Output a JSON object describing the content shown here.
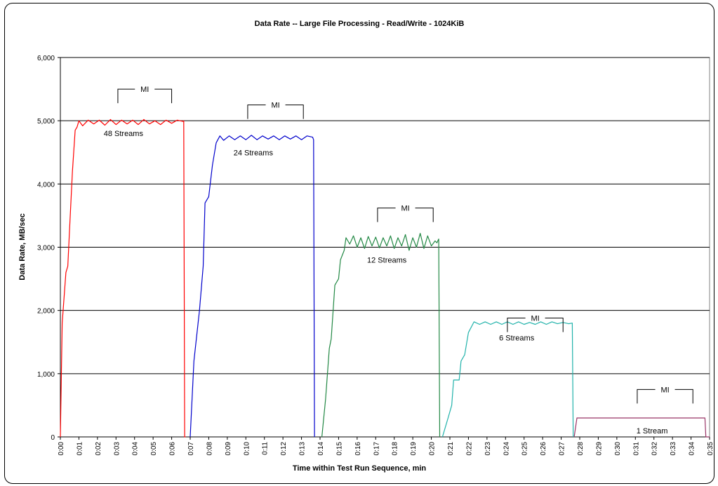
{
  "chart_data": {
    "type": "line",
    "title": "Data Rate -- Large File Processing - Read/Write - 1024KiB",
    "xlabel": "Time within Test Run Sequence, min",
    "ylabel": "Data Rate, MB/sec",
    "ylim": [
      0,
      6000
    ],
    "yticks": [
      0,
      1000,
      2000,
      3000,
      4000,
      5000,
      6000
    ],
    "ytick_labels": [
      "0",
      "1,000",
      "2,000",
      "3,000",
      "4,000",
      "5,000",
      "6,000"
    ],
    "xlim": [
      0,
      35
    ],
    "xtick_labels": [
      "0:00",
      "0:01",
      "0:02",
      "0:03",
      "0:04",
      "0:05",
      "0:06",
      "0:07",
      "0:08",
      "0:09",
      "0:10",
      "0:11",
      "0:12",
      "0:13",
      "0:14",
      "0:15",
      "0:16",
      "0:17",
      "0:18",
      "0:19",
      "0:20",
      "0:21",
      "0:22",
      "0:23",
      "0:24",
      "0:25",
      "0:26",
      "0:27",
      "0:28",
      "0:29",
      "0:30",
      "0:31",
      "0:32",
      "0:33",
      "0:34",
      "0:35"
    ],
    "grid": "horizontal",
    "series": [
      {
        "label": "48 Streams",
        "color": "#ff0000",
        "points": [
          [
            0,
            0
          ],
          [
            0.1,
            1800
          ],
          [
            0.3,
            2600
          ],
          [
            0.4,
            2700
          ],
          [
            0.5,
            3300
          ],
          [
            0.65,
            4200
          ],
          [
            0.8,
            4850
          ],
          [
            0.9,
            4900
          ],
          [
            1.0,
            5000
          ],
          [
            1.2,
            4920
          ],
          [
            1.5,
            5010
          ],
          [
            1.8,
            4950
          ],
          [
            2.1,
            5010
          ],
          [
            2.4,
            4930
          ],
          [
            2.7,
            5020
          ],
          [
            3.0,
            4940
          ],
          [
            3.3,
            5010
          ],
          [
            3.6,
            4950
          ],
          [
            3.9,
            5010
          ],
          [
            4.2,
            4940
          ],
          [
            4.5,
            5020
          ],
          [
            4.8,
            4950
          ],
          [
            5.1,
            5000
          ],
          [
            5.4,
            4940
          ],
          [
            5.7,
            5010
          ],
          [
            6.0,
            4960
          ],
          [
            6.3,
            5010
          ],
          [
            6.6,
            4990
          ],
          [
            6.65,
            5000
          ],
          [
            6.7,
            0
          ],
          [
            6.75,
            0
          ]
        ]
      },
      {
        "label": "24 Streams",
        "color": "#0000cc",
        "points": [
          [
            7.0,
            0
          ],
          [
            7.2,
            1200
          ],
          [
            7.5,
            2000
          ],
          [
            7.7,
            2700
          ],
          [
            7.8,
            3700
          ],
          [
            8.0,
            3800
          ],
          [
            8.2,
            4300
          ],
          [
            8.4,
            4650
          ],
          [
            8.6,
            4760
          ],
          [
            8.8,
            4690
          ],
          [
            9.1,
            4760
          ],
          [
            9.4,
            4700
          ],
          [
            9.7,
            4760
          ],
          [
            10.0,
            4700
          ],
          [
            10.3,
            4770
          ],
          [
            10.6,
            4700
          ],
          [
            10.9,
            4760
          ],
          [
            11.2,
            4710
          ],
          [
            11.5,
            4760
          ],
          [
            11.8,
            4700
          ],
          [
            12.1,
            4760
          ],
          [
            12.4,
            4710
          ],
          [
            12.7,
            4760
          ],
          [
            13.0,
            4700
          ],
          [
            13.3,
            4760
          ],
          [
            13.6,
            4740
          ],
          [
            13.65,
            4700
          ],
          [
            13.7,
            0
          ]
        ]
      },
      {
        "label": "12 Streams",
        "color": "#228844",
        "points": [
          [
            14.1,
            0
          ],
          [
            14.3,
            600
          ],
          [
            14.5,
            1400
          ],
          [
            14.6,
            1550
          ],
          [
            14.8,
            2400
          ],
          [
            15.0,
            2500
          ],
          [
            15.1,
            2800
          ],
          [
            15.3,
            2950
          ],
          [
            15.4,
            3150
          ],
          [
            15.6,
            3050
          ],
          [
            15.8,
            3180
          ],
          [
            16.0,
            3000
          ],
          [
            16.2,
            3150
          ],
          [
            16.4,
            2980
          ],
          [
            16.6,
            3170
          ],
          [
            16.8,
            3020
          ],
          [
            17.0,
            3160
          ],
          [
            17.2,
            2990
          ],
          [
            17.4,
            3150
          ],
          [
            17.6,
            3020
          ],
          [
            17.8,
            3180
          ],
          [
            18.0,
            2980
          ],
          [
            18.2,
            3150
          ],
          [
            18.4,
            3020
          ],
          [
            18.6,
            3200
          ],
          [
            18.8,
            2950
          ],
          [
            19.0,
            3150
          ],
          [
            19.2,
            3000
          ],
          [
            19.4,
            3220
          ],
          [
            19.6,
            2980
          ],
          [
            19.8,
            3180
          ],
          [
            20.0,
            3020
          ],
          [
            20.2,
            3100
          ],
          [
            20.3,
            3070
          ],
          [
            20.4,
            3130
          ],
          [
            20.45,
            0
          ]
        ]
      },
      {
        "label": "6 Streams",
        "color": "#20b2aa",
        "points": [
          [
            20.6,
            0
          ],
          [
            20.9,
            300
          ],
          [
            21.1,
            500
          ],
          [
            21.2,
            900
          ],
          [
            21.5,
            900
          ],
          [
            21.6,
            1200
          ],
          [
            21.8,
            1300
          ],
          [
            22.0,
            1650
          ],
          [
            22.3,
            1820
          ],
          [
            22.6,
            1780
          ],
          [
            22.9,
            1820
          ],
          [
            23.2,
            1780
          ],
          [
            23.5,
            1820
          ],
          [
            23.8,
            1780
          ],
          [
            24.1,
            1820
          ],
          [
            24.4,
            1780
          ],
          [
            24.7,
            1820
          ],
          [
            25.0,
            1780
          ],
          [
            25.3,
            1810
          ],
          [
            25.6,
            1780
          ],
          [
            25.9,
            1820
          ],
          [
            26.2,
            1780
          ],
          [
            26.5,
            1820
          ],
          [
            26.8,
            1790
          ],
          [
            27.1,
            1810
          ],
          [
            27.4,
            1790
          ],
          [
            27.6,
            1800
          ],
          [
            27.65,
            0
          ]
        ]
      },
      {
        "label": "1 Stream",
        "color": "#993366",
        "points": [
          [
            27.7,
            0
          ],
          [
            27.85,
            300
          ],
          [
            34.75,
            300
          ],
          [
            34.8,
            0
          ],
          [
            35,
            0
          ]
        ]
      }
    ],
    "annotations": [
      {
        "text": "48 Streams",
        "x": 3.4,
        "y": 4800
      },
      {
        "text": "24 Streams",
        "x": 10.4,
        "y": 4500
      },
      {
        "text": "12 Streams",
        "x": 17.6,
        "y": 2800
      },
      {
        "text": "6 Streams",
        "x": 24.6,
        "y": 1570
      },
      {
        "text": "1 Stream",
        "x": 31.9,
        "y": 100
      }
    ],
    "mi_brackets": [
      {
        "label": "MI",
        "x0": 3.1,
        "x1": 6.0,
        "y": 5500
      },
      {
        "label": "MI",
        "x0": 10.1,
        "x1": 13.1,
        "y": 5250
      },
      {
        "label": "MI",
        "x0": 17.1,
        "x1": 20.1,
        "y": 3620
      },
      {
        "label": "MI",
        "x0": 24.1,
        "x1": 27.1,
        "y": 1880
      },
      {
        "label": "MI",
        "x0": 31.1,
        "x1": 34.1,
        "y": 750
      }
    ]
  }
}
